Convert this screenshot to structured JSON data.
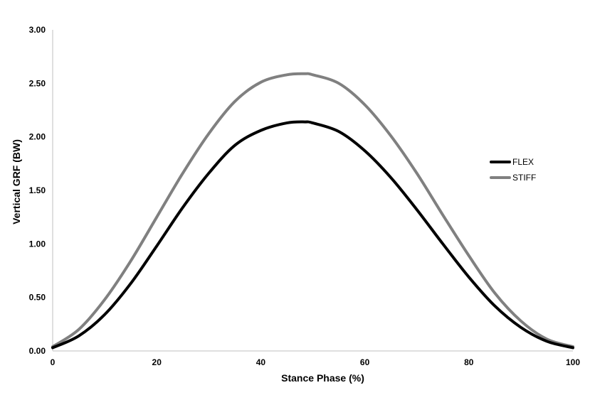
{
  "chart_data": {
    "type": "line",
    "xlabel": "Stance Phase (%)",
    "ylabel": "Vertical GRF (BW)",
    "xlim": [
      0,
      100
    ],
    "ylim": [
      0,
      3
    ],
    "x_ticks": [
      "0",
      "20",
      "40",
      "60",
      "80",
      "100"
    ],
    "y_ticks": [
      "0.00",
      "0.50",
      "1.00",
      "1.50",
      "2.00",
      "2.50",
      "3.00"
    ],
    "grid": false,
    "legend_position": "right",
    "x": [
      0,
      5,
      10,
      15,
      20,
      25,
      30,
      35,
      40,
      45,
      48.5,
      50,
      55,
      60,
      65,
      70,
      75,
      80,
      85,
      90,
      95,
      100
    ],
    "series": [
      {
        "name": "FLEX",
        "color": "#000000",
        "values": [
          0.03,
          0.14,
          0.34,
          0.63,
          0.98,
          1.34,
          1.66,
          1.92,
          2.06,
          2.13,
          2.14,
          2.13,
          2.05,
          1.87,
          1.62,
          1.32,
          1.0,
          0.69,
          0.42,
          0.22,
          0.09,
          0.03
        ]
      },
      {
        "name": "STIFF",
        "color": "#808080",
        "values": [
          0.04,
          0.2,
          0.48,
          0.84,
          1.25,
          1.66,
          2.03,
          2.33,
          2.51,
          2.58,
          2.59,
          2.58,
          2.5,
          2.3,
          2.01,
          1.66,
          1.27,
          0.89,
          0.54,
          0.28,
          0.11,
          0.04
        ]
      }
    ]
  }
}
